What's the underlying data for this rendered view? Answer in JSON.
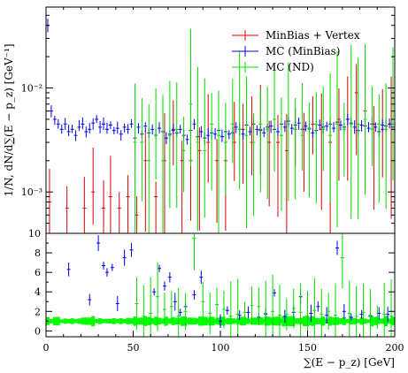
{
  "chart_data": {
    "type": "scatter",
    "xlabel": "∑(E − p_z) [GeV]",
    "main": {
      "ylabel": "1/N, dN/d∑(E − p_z) [GeV⁻¹]",
      "yscale": "log",
      "ylim": [
        0.0004,
        0.06
      ],
      "y_tick_labels": [
        "10⁻³",
        "10⁻²"
      ],
      "xlim": [
        0,
        200
      ]
    },
    "ratio": {
      "ylim": [
        -0.6,
        10
      ],
      "y_tick_labels": [
        "0",
        "2",
        "4",
        "6",
        "8",
        "10"
      ],
      "reference_line": 1
    },
    "x_tick_labels": [
      "0",
      "50",
      "100",
      "150",
      "200"
    ],
    "legend": {
      "position": "top-right",
      "entries": [
        {
          "label": "MinBias + Vertex",
          "color": "#dd0000"
        },
        {
          "label": "MC (MinBias)",
          "color": "#0000ee"
        },
        {
          "label": "MC (ND)",
          "color": "#00dd00"
        }
      ]
    },
    "series": [
      {
        "name": "MinBias + Vertex",
        "color": "#dd0000",
        "x": [
          2,
          12,
          22,
          27,
          33,
          37,
          42,
          47,
          52,
          57,
          63,
          68,
          73,
          78,
          83,
          88,
          93,
          98,
          103,
          108,
          113,
          118,
          123,
          128,
          133,
          138,
          143,
          148,
          153,
          158,
          163,
          168,
          173,
          178,
          183,
          188,
          193,
          198
        ],
        "y": [
          0.0008,
          0.0007,
          0.0007,
          0.001,
          0.0007,
          0.0009,
          0.0007,
          0.0009,
          0.0006,
          0.002,
          0.0009,
          0.002,
          0.004,
          0.002,
          0.002,
          0.0025,
          0.003,
          0.002,
          0.002,
          0.003,
          0.004,
          0.003,
          0.004,
          0.003,
          0.003,
          0.0025,
          0.004,
          0.004,
          0.0045,
          0.004,
          0.003,
          0.005,
          0.005,
          0.009,
          0.006,
          0.0045,
          0.004,
          0.0045
        ]
      },
      {
        "name": "MC (MinBias)",
        "color": "#0000ee",
        "x": [
          1,
          3,
          5,
          7,
          9,
          11,
          13,
          15,
          17,
          19,
          21,
          23,
          25,
          27,
          29,
          31,
          33,
          35,
          37,
          39,
          41,
          43,
          45,
          47,
          49,
          51,
          53,
          55,
          57,
          59,
          61,
          63,
          65,
          67,
          69,
          71,
          73,
          75,
          77,
          79,
          81,
          83,
          85,
          87,
          89,
          91,
          93,
          95,
          97,
          99,
          101,
          103,
          105,
          107,
          109,
          111,
          113,
          115,
          117,
          119,
          121,
          123,
          125,
          127,
          129,
          131,
          133,
          135,
          137,
          139,
          141,
          143,
          145,
          147,
          149,
          151,
          153,
          155,
          157,
          159,
          161,
          163,
          165,
          167,
          169,
          171,
          173,
          175,
          177,
          179,
          181,
          183,
          185,
          187,
          189,
          191,
          193,
          195,
          197,
          199
        ],
        "y": [
          0.04,
          0.006,
          0.005,
          0.0045,
          0.004,
          0.0045,
          0.0038,
          0.004,
          0.0035,
          0.0042,
          0.0045,
          0.0038,
          0.004,
          0.0046,
          0.005,
          0.0042,
          0.0045,
          0.004,
          0.0044,
          0.0039,
          0.0041,
          0.0036,
          0.0042,
          0.004,
          0.0045,
          0.0033,
          0.0042,
          0.0036,
          0.0043,
          0.0037,
          0.004,
          0.0035,
          0.0041,
          0.0038,
          0.0033,
          0.0036,
          0.0039,
          0.0037,
          0.004,
          0.0035,
          0.0032,
          0.0039,
          0.0045,
          0.0034,
          0.0038,
          0.0033,
          0.0035,
          0.0037,
          0.0036,
          0.0039,
          0.0034,
          0.0038,
          0.0036,
          0.0037,
          0.0042,
          0.004,
          0.0036,
          0.0044,
          0.0038,
          0.0045,
          0.004,
          0.0039,
          0.0037,
          0.0042,
          0.0043,
          0.004,
          0.0038,
          0.0045,
          0.0042,
          0.0048,
          0.0041,
          0.0044,
          0.0046,
          0.004,
          0.0043,
          0.0041,
          0.0037,
          0.0039,
          0.0044,
          0.0042,
          0.0043,
          0.0045,
          0.0041,
          0.0047,
          0.0044,
          0.0042,
          0.005,
          0.0046,
          0.0042,
          0.0039,
          0.0044,
          0.0043,
          0.0041,
          0.0045,
          0.0042,
          0.0038,
          0.0044,
          0.0043,
          0.0045,
          0.0042
        ]
      },
      {
        "name": "MC (ND)",
        "color": "#00dd00",
        "x": [
          51,
          55,
          59,
          63,
          67,
          71,
          75,
          79,
          83,
          87,
          91,
          95,
          99,
          103,
          107,
          111,
          115,
          119,
          123,
          127,
          131,
          135,
          139,
          143,
          147,
          151,
          155,
          159,
          163,
          167,
          171,
          175,
          179,
          183,
          187,
          191,
          195,
          199
        ],
        "y": [
          0.003,
          0.003,
          0.002,
          0.0035,
          0.002,
          0.0035,
          0.004,
          0.0025,
          0.007,
          0.003,
          0.0025,
          0.0045,
          0.0035,
          0.003,
          0.0045,
          0.004,
          0.0035,
          0.003,
          0.0045,
          0.004,
          0.005,
          0.0035,
          0.0045,
          0.004,
          0.0035,
          0.004,
          0.0045,
          0.004,
          0.0035,
          0.0045,
          0.004,
          0.0045,
          0.0045,
          0.005,
          0.004,
          0.0045,
          0.004,
          0.0045
        ]
      }
    ],
    "ratio_series": [
      {
        "name": "MC (MinBias)",
        "color": "#0000ee",
        "x": [
          13,
          25,
          30,
          33,
          35,
          38,
          41,
          45,
          49,
          62,
          65,
          68,
          71,
          74,
          77,
          80,
          85,
          89,
          100,
          104,
          111,
          116,
          122,
          126,
          131,
          137,
          142,
          146,
          152,
          156,
          161,
          167,
          171,
          175,
          181,
          186,
          191,
          196
        ],
        "y": [
          6.3,
          3.2,
          9.0,
          6.7,
          6.0,
          6.5,
          2.8,
          7.5,
          8.3,
          4.0,
          6.4,
          4.6,
          5.5,
          3.0,
          1.9,
          2.5,
          3.7,
          5.5,
          1.0,
          2.1,
          1.6,
          1.9,
          1.4,
          1.7,
          3.9,
          1.5,
          1.9,
          3.5,
          1.8,
          2.5,
          1.6,
          8.5,
          2.0,
          1.4,
          1.7,
          1.5,
          1.8,
          1.7
        ]
      },
      {
        "name": "MC (ND)",
        "color": "#00dd00",
        "x": [
          52,
          56,
          60,
          64,
          68,
          72,
          76,
          80,
          85,
          90,
          94,
          98,
          102,
          106,
          110,
          114,
          118,
          122,
          126,
          130,
          134,
          138,
          142,
          146,
          150,
          154,
          158,
          162,
          166,
          170,
          174,
          178,
          182,
          186,
          190,
          194,
          198
        ],
        "y": [
          2.8,
          1.5,
          1.8,
          3.5,
          2.2,
          2.5,
          1.5,
          2.0,
          9.5,
          3.0,
          1.8,
          2.7,
          2.2,
          1.5,
          1.7,
          1.9,
          2.6,
          2.5,
          1.8,
          2.0,
          1.6,
          1.7,
          2.3,
          1.9,
          1.5,
          2.1,
          1.7,
          2.0,
          1.6,
          7.5,
          1.8,
          1.5,
          1.9,
          1.6,
          1.4,
          1.7,
          1.5
        ]
      }
    ],
    "ratio_band": {
      "color": "#00ff00",
      "description_x_range": [
        0,
        200
      ]
    }
  }
}
